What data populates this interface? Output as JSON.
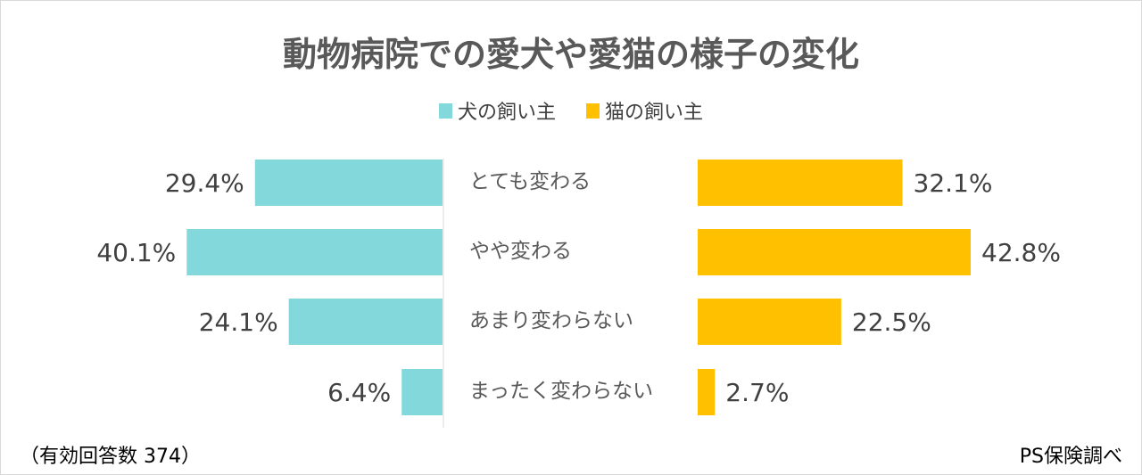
{
  "chart_data": {
    "type": "bar",
    "orientation": "horizontal-butterfly",
    "title": "動物病院での愛犬や愛猫の様子の変化",
    "categories": [
      "とても変わる",
      "やや変わる",
      "あまり変わらない",
      "まったく変わらない"
    ],
    "series": [
      {
        "name": "犬の飼い主",
        "values": [
          29.4,
          40.1,
          24.1,
          6.4
        ],
        "color": "#83d8db"
      },
      {
        "name": "猫の飼い主",
        "values": [
          32.1,
          42.8,
          22.5,
          2.7
        ],
        "color": "#ffc000"
      }
    ],
    "unit": "%",
    "legend": "top-center",
    "grid": false
  },
  "footnotes": {
    "sample": "（有効回答数 374）",
    "source": "PS保険調べ"
  }
}
